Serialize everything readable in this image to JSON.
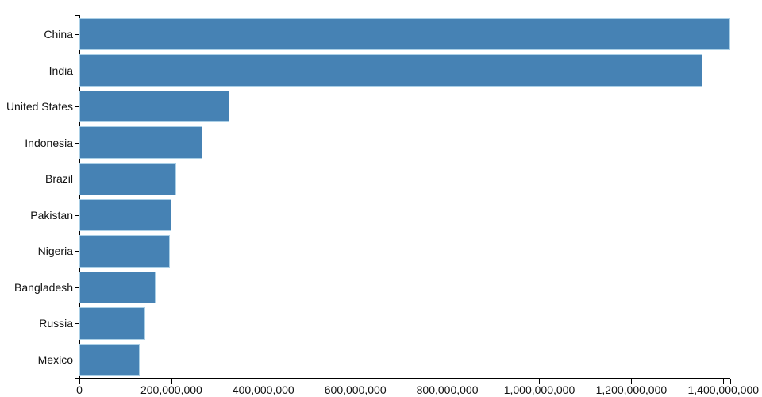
{
  "chart_data": {
    "type": "bar",
    "orientation": "horizontal",
    "title": "",
    "xlabel": "",
    "ylabel": "",
    "categories": [
      "China",
      "India",
      "United States",
      "Indonesia",
      "Brazil",
      "Pakistan",
      "Nigeria",
      "Bangladesh",
      "Russia",
      "Mexico"
    ],
    "values": [
      1415045928,
      1354051854,
      326766748,
      266794980,
      210867954,
      200813818,
      195875237,
      166368149,
      143964709,
      130759074
    ],
    "xlim": [
      0,
      1415045928
    ],
    "grid": false,
    "legend": "none",
    "x_ticks": {
      "values": [
        0,
        200000000,
        400000000,
        600000000,
        800000000,
        1000000000,
        1200000000,
        1400000000
      ],
      "labels": [
        "0",
        "200,000,000",
        "400,000,000",
        "600,000,000",
        "800,000,000",
        "1,000,000,000",
        "1,200,000,000",
        "1,400,000,000"
      ]
    },
    "colors": {
      "bar_fill": "#4682b4",
      "bar_stroke": "#aacfe6",
      "axis": "#000000",
      "text": "#111111",
      "background": "#ffffff"
    }
  }
}
